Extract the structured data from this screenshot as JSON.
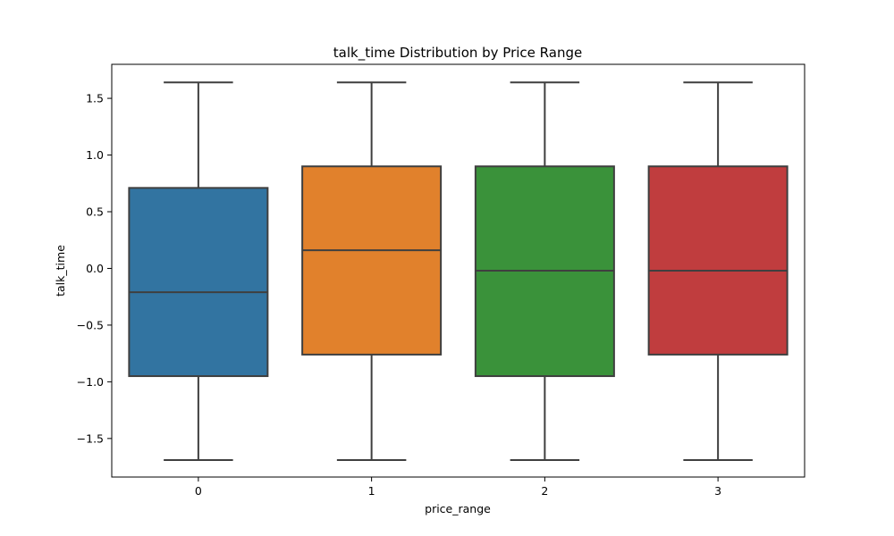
{
  "chart_data": {
    "type": "box",
    "title": "talk_time Distribution by Price Range",
    "xlabel": "price_range",
    "ylabel": "talk_time",
    "categories": [
      "0",
      "1",
      "2",
      "3"
    ],
    "ylim": [
      -1.84,
      1.8
    ],
    "yticks": [
      -1.5,
      -1.0,
      -0.5,
      0.0,
      0.5,
      1.0,
      1.5
    ],
    "ytick_labels": [
      "−1.5",
      "−1.0",
      "−0.5",
      "0.0",
      "0.5",
      "1.0",
      "1.5"
    ],
    "grid": false,
    "boxes": [
      {
        "category": "0",
        "whisker_low": -1.69,
        "q1": -0.95,
        "median": -0.21,
        "q3": 0.71,
        "whisker_high": 1.64,
        "color": "#3274a1"
      },
      {
        "category": "1",
        "whisker_low": -1.69,
        "q1": -0.76,
        "median": 0.16,
        "q3": 0.9,
        "whisker_high": 1.64,
        "color": "#e1812c"
      },
      {
        "category": "2",
        "whisker_low": -1.69,
        "q1": -0.95,
        "median": -0.02,
        "q3": 0.9,
        "whisker_high": 1.64,
        "color": "#3a923a"
      },
      {
        "category": "3",
        "whisker_low": -1.69,
        "q1": -0.76,
        "median": -0.02,
        "q3": 0.9,
        "whisker_high": 1.64,
        "color": "#c03d3e"
      }
    ]
  }
}
